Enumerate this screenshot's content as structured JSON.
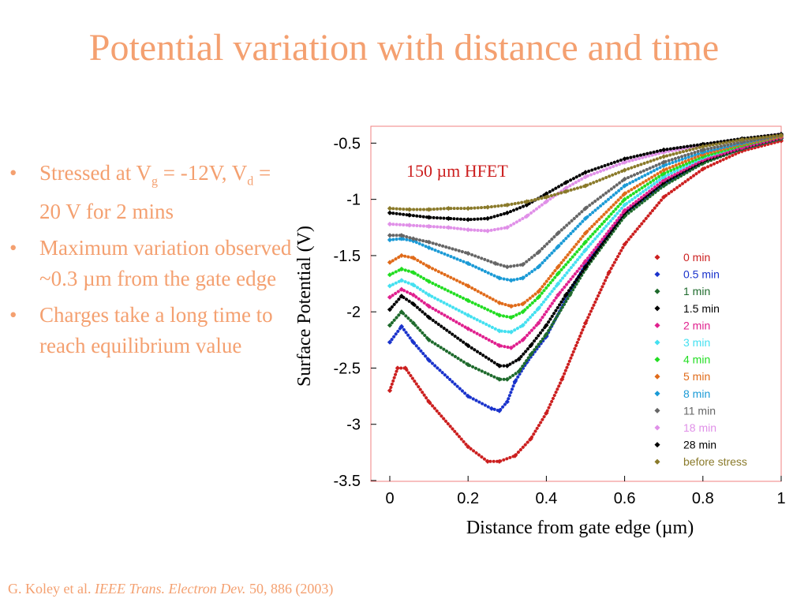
{
  "slide": {
    "title": "Potential variation with distance and time",
    "bullets": [
      {
        "parts": [
          "Stressed at V",
          "g",
          " = -12V, V",
          "d",
          " = 20 V for 2 mins"
        ]
      },
      {
        "text": "Maximum variation observed ~0.3 µm from the gate edge"
      },
      {
        "text": "Charges take a long time to reach equilibrium value"
      }
    ],
    "bullet_glyph": "•",
    "citation": {
      "authors": "G. Koley et al.",
      "journal": "IEEE Trans. Electron Dev.",
      "ref": "50, 886 (2003)"
    },
    "colors": {
      "accent": "#f4a070"
    }
  },
  "chart_data": {
    "type": "line",
    "annotation": "150 µm HFET",
    "xlabel": "Distance from gate edge (µm)",
    "ylabel": "Surface Potential (V)",
    "xlim": [
      0,
      1
    ],
    "ylim": [
      -3.5,
      -0.35
    ],
    "xticks": [
      0,
      0.2,
      0.4,
      0.6,
      0.8,
      1
    ],
    "xtick_labels": [
      "0",
      "0.2",
      "0.4",
      "0.6",
      "0.8",
      "1"
    ],
    "yticks": [
      -0.5,
      -1,
      -1.5,
      -2,
      -2.5,
      -3,
      -3.5
    ],
    "ytick_labels": [
      "-0.5",
      "-1",
      "-1.5",
      "-2",
      "-2.5",
      "-3",
      "-3.5"
    ],
    "legend_position": "right",
    "series": [
      {
        "name": "0 min",
        "color": "#cc1f1f",
        "x": [
          0,
          0.02,
          0.04,
          0.1,
          0.2,
          0.25,
          0.28,
          0.32,
          0.36,
          0.4,
          0.44,
          0.5,
          0.56,
          0.6,
          0.7,
          0.8,
          0.9,
          1.0
        ],
        "y": [
          -2.7,
          -2.5,
          -2.5,
          -2.8,
          -3.2,
          -3.33,
          -3.33,
          -3.28,
          -3.13,
          -2.9,
          -2.6,
          -2.1,
          -1.65,
          -1.4,
          -0.98,
          -0.73,
          -0.57,
          -0.48
        ]
      },
      {
        "name": "0.5 min",
        "color": "#1a33cc",
        "x": [
          0,
          0.03,
          0.06,
          0.1,
          0.2,
          0.26,
          0.28,
          0.3,
          0.32,
          0.35,
          0.4,
          0.46,
          0.5,
          0.6,
          0.7,
          0.8,
          0.9,
          1.0
        ],
        "y": [
          -2.27,
          -2.13,
          -2.27,
          -2.43,
          -2.75,
          -2.86,
          -2.88,
          -2.8,
          -2.62,
          -2.45,
          -2.22,
          -1.82,
          -1.58,
          -1.12,
          -0.87,
          -0.67,
          -0.55,
          -0.46
        ]
      },
      {
        "name": "1 min",
        "color": "#1e6a2c",
        "x": [
          0,
          0.03,
          0.06,
          0.1,
          0.2,
          0.28,
          0.3,
          0.33,
          0.36,
          0.4,
          0.46,
          0.5,
          0.6,
          0.7,
          0.8,
          0.9,
          1.0
        ],
        "y": [
          -2.12,
          -2.0,
          -2.1,
          -2.25,
          -2.47,
          -2.6,
          -2.6,
          -2.53,
          -2.38,
          -2.2,
          -1.85,
          -1.62,
          -1.15,
          -0.88,
          -0.68,
          -0.55,
          -0.46
        ]
      },
      {
        "name": "1.5 min",
        "color": "#000000",
        "x": [
          0,
          0.03,
          0.06,
          0.1,
          0.2,
          0.28,
          0.3,
          0.33,
          0.36,
          0.4,
          0.45,
          0.5,
          0.6,
          0.7,
          0.8,
          0.9,
          1.0
        ],
        "y": [
          -1.98,
          -1.86,
          -1.93,
          -2.05,
          -2.3,
          -2.48,
          -2.48,
          -2.42,
          -2.3,
          -2.12,
          -1.85,
          -1.6,
          -1.12,
          -0.85,
          -0.66,
          -0.54,
          -0.45
        ]
      },
      {
        "name": "2 min",
        "color": "#e0208e",
        "x": [
          0,
          0.03,
          0.06,
          0.1,
          0.2,
          0.28,
          0.31,
          0.34,
          0.38,
          0.43,
          0.5,
          0.6,
          0.7,
          0.8,
          0.9,
          1.0
        ],
        "y": [
          -1.87,
          -1.8,
          -1.85,
          -1.95,
          -2.15,
          -2.3,
          -2.32,
          -2.25,
          -2.1,
          -1.85,
          -1.55,
          -1.1,
          -0.83,
          -0.65,
          -0.54,
          -0.45
        ]
      },
      {
        "name": "3 min",
        "color": "#44e0f0",
        "x": [
          0,
          0.03,
          0.06,
          0.1,
          0.2,
          0.28,
          0.31,
          0.34,
          0.38,
          0.43,
          0.5,
          0.6,
          0.7,
          0.8,
          0.9,
          1.0
        ],
        "y": [
          -1.77,
          -1.72,
          -1.76,
          -1.85,
          -2.03,
          -2.17,
          -2.18,
          -2.12,
          -1.97,
          -1.75,
          -1.45,
          -1.05,
          -0.8,
          -0.63,
          -0.52,
          -0.44
        ]
      },
      {
        "name": "4 min",
        "color": "#22dd22",
        "x": [
          0,
          0.03,
          0.06,
          0.1,
          0.2,
          0.28,
          0.31,
          0.34,
          0.38,
          0.43,
          0.5,
          0.6,
          0.7,
          0.8,
          0.9,
          1.0
        ],
        "y": [
          -1.67,
          -1.62,
          -1.65,
          -1.73,
          -1.9,
          -2.03,
          -2.05,
          -2.0,
          -1.87,
          -1.66,
          -1.38,
          -1.0,
          -0.77,
          -0.62,
          -0.52,
          -0.44
        ]
      },
      {
        "name": "5 min",
        "color": "#e06b1a",
        "x": [
          0,
          0.03,
          0.06,
          0.1,
          0.2,
          0.28,
          0.31,
          0.34,
          0.38,
          0.43,
          0.5,
          0.6,
          0.7,
          0.8,
          0.9,
          1.0
        ],
        "y": [
          -1.56,
          -1.5,
          -1.52,
          -1.6,
          -1.77,
          -1.92,
          -1.95,
          -1.93,
          -1.82,
          -1.6,
          -1.3,
          -0.95,
          -0.74,
          -0.6,
          -0.51,
          -0.44
        ]
      },
      {
        "name": "8 min",
        "color": "#1a9ad6",
        "x": [
          0,
          0.03,
          0.06,
          0.1,
          0.2,
          0.28,
          0.31,
          0.34,
          0.38,
          0.43,
          0.5,
          0.6,
          0.7,
          0.8,
          0.9,
          1.0
        ],
        "y": [
          -1.36,
          -1.35,
          -1.37,
          -1.43,
          -1.57,
          -1.7,
          -1.72,
          -1.7,
          -1.6,
          -1.42,
          -1.17,
          -0.88,
          -0.7,
          -0.58,
          -0.5,
          -0.43
        ]
      },
      {
        "name": "11 min",
        "color": "#666666",
        "x": [
          0,
          0.03,
          0.06,
          0.1,
          0.2,
          0.27,
          0.3,
          0.34,
          0.38,
          0.43,
          0.5,
          0.6,
          0.7,
          0.8,
          0.9,
          1.0
        ],
        "y": [
          -1.32,
          -1.32,
          -1.35,
          -1.38,
          -1.48,
          -1.57,
          -1.6,
          -1.58,
          -1.47,
          -1.3,
          -1.08,
          -0.82,
          -0.67,
          -0.56,
          -0.49,
          -0.43
        ]
      },
      {
        "name": "18 min",
        "color": "#e090e8",
        "x": [
          0,
          0.05,
          0.1,
          0.15,
          0.2,
          0.25,
          0.3,
          0.35,
          0.4,
          0.45,
          0.5,
          0.6,
          0.7,
          0.8,
          0.9,
          1.0
        ],
        "y": [
          -1.22,
          -1.23,
          -1.24,
          -1.25,
          -1.27,
          -1.28,
          -1.25,
          -1.15,
          -1.02,
          -0.9,
          -0.8,
          -0.67,
          -0.58,
          -0.52,
          -0.47,
          -0.42
        ]
      },
      {
        "name": "28 min",
        "color": "#000000",
        "x": [
          0,
          0.05,
          0.1,
          0.15,
          0.2,
          0.25,
          0.3,
          0.35,
          0.4,
          0.45,
          0.5,
          0.6,
          0.7,
          0.8,
          0.9,
          1.0
        ],
        "y": [
          -1.12,
          -1.14,
          -1.16,
          -1.17,
          -1.18,
          -1.17,
          -1.12,
          -1.05,
          -0.95,
          -0.85,
          -0.76,
          -0.64,
          -0.56,
          -0.51,
          -0.46,
          -0.42
        ]
      },
      {
        "name": "before stress",
        "color": "#8a7a2a",
        "x": [
          0,
          0.05,
          0.1,
          0.15,
          0.2,
          0.25,
          0.3,
          0.35,
          0.4,
          0.45,
          0.5,
          0.6,
          0.7,
          0.8,
          0.9,
          1.0
        ],
        "y": [
          -1.08,
          -1.09,
          -1.09,
          -1.08,
          -1.08,
          -1.07,
          -1.05,
          -1.02,
          -0.98,
          -0.93,
          -0.88,
          -0.74,
          -0.62,
          -0.53,
          -0.47,
          -0.43
        ]
      }
    ]
  }
}
